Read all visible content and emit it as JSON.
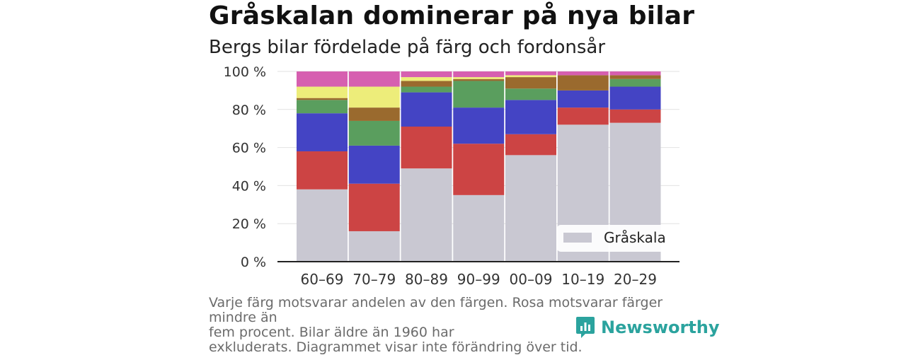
{
  "header": {
    "title": "Gråskalan dominerar på nya bilar",
    "subtitle": "Bergs bilar fördelade på färg och fordonsår"
  },
  "caption": {
    "line1": "Varje färg motsvarar andelen av den färgen. Rosa motsvarar färger mindre än",
    "line2": "fem procent. Bilar äldre än 1960 har",
    "line3": "exkluderats. Diagrammet visar inte förändring över tid."
  },
  "brand": {
    "name": "Newsworthy",
    "icon": "newsworthy-logo-icon",
    "color": "#2ba39e"
  },
  "chart_data": {
    "type": "bar",
    "stacked": true,
    "percent": true,
    "categories": [
      "60–69",
      "70–79",
      "80–89",
      "90–99",
      "00–09",
      "10–19",
      "20–29"
    ],
    "ylim": [
      0,
      100
    ],
    "yticks": [
      0,
      20,
      40,
      60,
      80,
      100
    ],
    "ytick_labels": [
      "0 %",
      "20 %",
      "40 %",
      "60 %",
      "80 %",
      "100 %"
    ],
    "grid": true,
    "legend": {
      "position": "bottom-right",
      "visible_entries": [
        "Gråskala"
      ]
    },
    "series": [
      {
        "name": "Gråskala",
        "color": "#c9c8d2",
        "values": [
          38,
          16,
          49,
          35,
          56,
          72,
          73
        ]
      },
      {
        "color": "#cc4444",
        "values": [
          20,
          25,
          22,
          27,
          11,
          9,
          7
        ]
      },
      {
        "color": "#4444c4",
        "values": [
          20,
          20,
          18,
          19,
          18,
          9,
          12
        ]
      },
      {
        "color": "#5a9e5e",
        "values": [
          7,
          13,
          3,
          14,
          6,
          0,
          4
        ]
      },
      {
        "color": "#9a6a2e",
        "values": [
          1,
          7,
          3,
          1,
          6,
          8,
          2
        ]
      },
      {
        "color": "#eded7a",
        "values": [
          6,
          11,
          2,
          1,
          1,
          0,
          0
        ]
      },
      {
        "color": "#d65fb0",
        "values": [
          8,
          8,
          3,
          3,
          2,
          2,
          2
        ]
      }
    ]
  }
}
